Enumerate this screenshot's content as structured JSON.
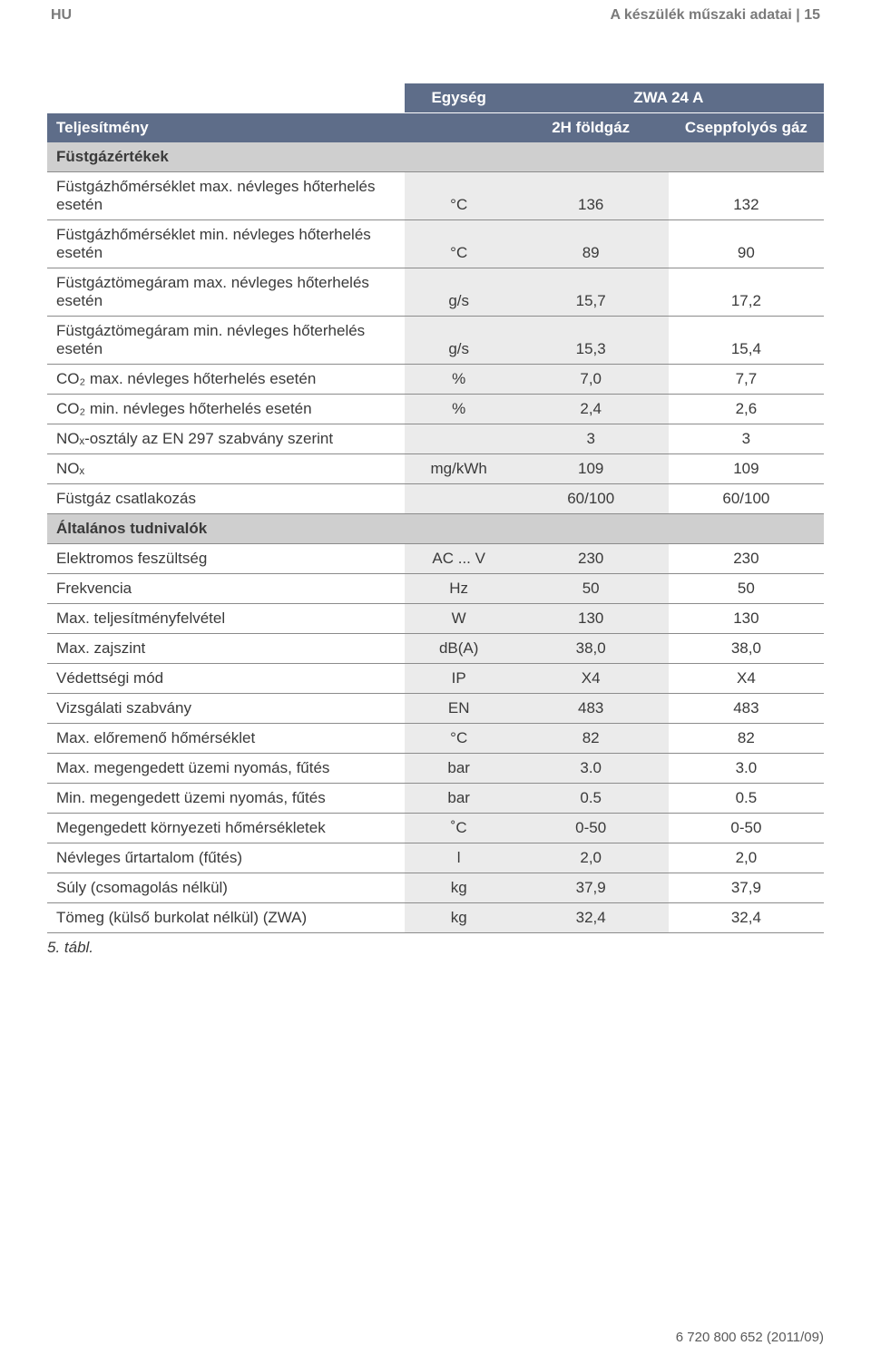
{
  "topbar": {
    "left": "HU",
    "right": "A készülék műszaki adatai | 15"
  },
  "columns": {
    "unit_header": "Egység",
    "model_header": "ZWA 24 A",
    "power_label": "Teljesítmény",
    "gas1": "2H földgáz",
    "gas2": "Cseppfolyós gáz"
  },
  "sections": [
    {
      "title": "Füstgázértékek"
    }
  ],
  "rows1": [
    {
      "label_top": "Füstgázhőmérséklet max. névleges hőterhelés",
      "label_bot": "esetén",
      "unit": "°C",
      "v1": "136",
      "v2": "132"
    },
    {
      "label_top": "Füstgázhőmérséklet min. névleges hőterhelés",
      "label_bot": "esetén",
      "unit": "°C",
      "v1": "89",
      "v2": "90"
    },
    {
      "label_top": "Füstgáztömegáram max. névleges hőterhelés",
      "label_bot": "esetén",
      "unit": "g/s",
      "v1": "15,7",
      "v2": "17,2"
    },
    {
      "label_top": "Füstgáztömegáram min. névleges hőterhelés",
      "label_bot": "esetén",
      "unit": "g/s",
      "v1": "15,3",
      "v2": "15,4"
    },
    {
      "label": "CO₂ max. névleges hőterhelés esetén",
      "unit": "%",
      "v1": "7,0",
      "v2": "7,7"
    },
    {
      "label": "CO₂ min. névleges hőterhelés esetén",
      "unit": "%",
      "v1": "2,4",
      "v2": "2,6"
    },
    {
      "label": "NOₓ-osztály az EN 297 szabvány szerint",
      "unit": "",
      "v1": "3",
      "v2": "3"
    },
    {
      "label": "NOₓ",
      "unit": "mg/kWh",
      "v1": "109",
      "v2": "109"
    },
    {
      "label": "Füstgáz csatlakozás",
      "unit": "",
      "v1": "60/100",
      "v2": "60/100"
    }
  ],
  "section2": {
    "title": "Általános tudnivalók"
  },
  "rows2": [
    {
      "label": "Elektromos feszültség",
      "unit": "AC ... V",
      "v1": "230",
      "v2": "230"
    },
    {
      "label": "Frekvencia",
      "unit": "Hz",
      "v1": "50",
      "v2": "50"
    },
    {
      "label": "Max. teljesítményfelvétel",
      "unit": "W",
      "v1": "130",
      "v2": "130"
    },
    {
      "label": "Max. zajszint",
      "unit": "dB(A)",
      "v1": "38,0",
      "v2": "38,0"
    },
    {
      "label": "Védettségi mód",
      "unit": "IP",
      "v1": "X4",
      "v2": "X4"
    },
    {
      "label": "Vizsgálati szabvány",
      "unit": "EN",
      "v1": "483",
      "v2": "483"
    },
    {
      "label": "Max. előremenő hőmérséklet",
      "unit": "°C",
      "v1": "82",
      "v2": "82"
    },
    {
      "label": "Max. megengedett üzemi nyomás, fűtés",
      "unit": "bar",
      "v1": "3.0",
      "v2": "3.0"
    },
    {
      "label": "Min. megengedett üzemi nyomás, fűtés",
      "unit": "bar",
      "v1": "0.5",
      "v2": "0.5"
    },
    {
      "label": "Megengedett környezeti hőmérsékletek",
      "unit": "˚C",
      "v1": "0-50",
      "v2": "0-50"
    },
    {
      "label": "Névleges űrtartalom (fűtés)",
      "unit": "l",
      "v1": "2,0",
      "v2": "2,0"
    },
    {
      "label": "Súly (csomagolás nélkül)",
      "unit": "kg",
      "v1": "37,9",
      "v2": "37,9"
    },
    {
      "label": "Tömeg (külső burkolat nélkül) (ZWA)",
      "unit": "kg",
      "v1": "32,4",
      "v2": "32,4"
    }
  ],
  "caption": "5. tábl.",
  "footer": "6 720 800 652 (2011/09)",
  "colors": {
    "header_bg": "#5e6d89",
    "section_bg": "#cfcfcf",
    "alt_bg": "#ebebeb",
    "border": "#8b8b8b",
    "text": "#3a3a3a"
  }
}
